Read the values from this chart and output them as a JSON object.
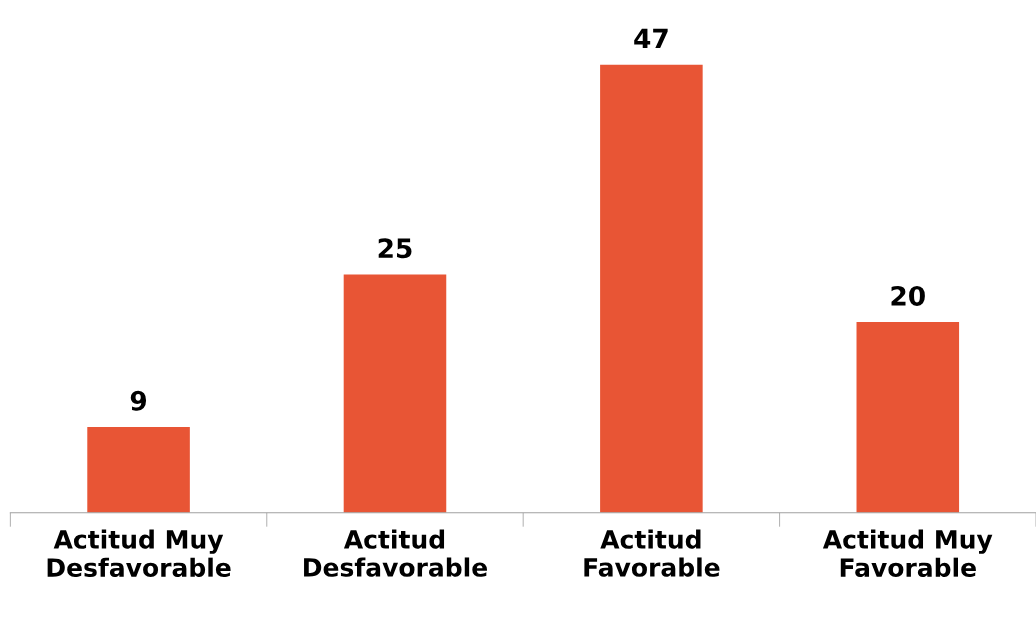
{
  "chart_data": {
    "type": "bar",
    "categories": [
      "Actitud Muy\nDesfavorable",
      "Actitud\nDesfavorable",
      "Actitud\nFavorable",
      "Actitud Muy\nFavorable"
    ],
    "values": [
      9,
      25,
      47,
      20
    ],
    "color": "#e85535",
    "data_labels": true,
    "grid": false,
    "legend": false
  }
}
